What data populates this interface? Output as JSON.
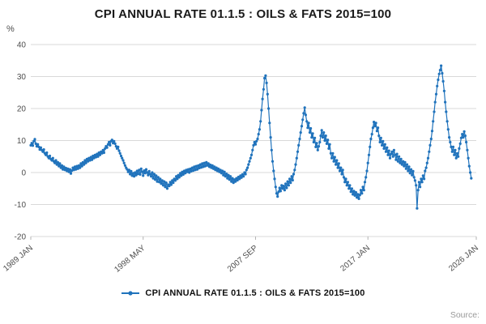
{
  "header": {
    "title": "CPI ANNUAL RATE 01.1.5 : OILS & FATS 2015=100"
  },
  "axes": {
    "unit_label": "%"
  },
  "legend": {
    "label": "CPI ANNUAL RATE 01.1.5 : OILS & FATS 2015=100"
  },
  "footer": {
    "source_label": "Source:"
  },
  "colors": {
    "line": "#2073bc",
    "grid": "#d9d9d9",
    "tick_text": "#4d4d4d"
  },
  "chart_data": {
    "type": "line",
    "title": "CPI ANNUAL RATE 01.1.5 : OILS & FATS 2015=100",
    "xlabel": "",
    "ylabel": "%",
    "ylim": [
      -20,
      40
    ],
    "yticks": [
      40,
      30,
      20,
      10,
      0,
      -10,
      -20
    ],
    "xticks": [
      "1989 JAN",
      "1998 MAY",
      "2007 SEP",
      "2017 JAN",
      "2026 JAN"
    ],
    "xtick_month_offsets": [
      0,
      112,
      224,
      336,
      444
    ],
    "x_start": "1989-01",
    "x_axis_end": "2026-01",
    "x_total_months": 444,
    "frequency": "monthly",
    "grid": "horizontal",
    "marker": "circle",
    "legend_position": "bottom",
    "series": [
      {
        "name": "CPI ANNUAL RATE 01.1.5 : OILS & FATS 2015=100",
        "values": [
          8.5,
          9.2,
          8.4,
          9.8,
          10.4,
          9.0,
          8.2,
          8.8,
          8.0,
          7.2,
          7.8,
          7.0,
          6.5,
          7.2,
          6.0,
          5.5,
          6.2,
          5.0,
          4.5,
          5.2,
          4.2,
          3.8,
          4.5,
          3.5,
          3.0,
          3.8,
          2.5,
          3.2,
          2.0,
          2.8,
          1.5,
          2.2,
          1.0,
          1.8,
          0.8,
          1.4,
          0.5,
          1.2,
          0.2,
          1.0,
          -0.3,
          0.6,
          1.5,
          0.8,
          1.8,
          1.0,
          2.0,
          1.2,
          2.2,
          1.5,
          2.8,
          2.0,
          3.2,
          2.5,
          3.8,
          3.0,
          4.2,
          3.5,
          4.5,
          3.8,
          4.8,
          4.0,
          5.2,
          4.5,
          5.5,
          4.8,
          5.8,
          5.0,
          6.2,
          5.5,
          6.5,
          6.0,
          7.0,
          6.2,
          7.5,
          8.2,
          7.8,
          8.8,
          9.5,
          8.5,
          9.8,
          10.2,
          9.2,
          9.8,
          9.0,
          8.2,
          7.5,
          8.0,
          6.8,
          6.0,
          5.2,
          4.5,
          3.8,
          3.0,
          2.2,
          1.5,
          1.0,
          0.2,
          0.8,
          -0.5,
          0.4,
          -1.0,
          -0.2,
          -1.2,
          0.0,
          -0.8,
          0.5,
          -0.4,
          0.8,
          -0.6,
          1.2,
          0.2,
          -1.0,
          0.6,
          -0.2,
          1.0,
          0.0,
          -0.8,
          0.4,
          -0.5,
          -1.2,
          0.0,
          -1.8,
          -0.5,
          -2.2,
          -1.0,
          -2.8,
          -1.5,
          -3.0,
          -2.0,
          -3.5,
          -2.5,
          -4.0,
          -2.8,
          -4.5,
          -3.2,
          -5.0,
          -3.8,
          -4.2,
          -3.0,
          -3.8,
          -2.5,
          -3.2,
          -2.0,
          -2.5,
          -1.2,
          -2.0,
          -0.8,
          -1.5,
          -0.2,
          -1.0,
          0.2,
          -0.6,
          0.5,
          -0.2,
          0.8,
          0.2,
          1.0,
          0.0,
          1.2,
          0.4,
          1.5,
          0.6,
          1.8,
          0.8,
          2.0,
          1.0,
          2.2,
          1.4,
          2.5,
          1.6,
          2.8,
          1.8,
          3.0,
          2.0,
          3.2,
          2.2,
          2.8,
          1.8,
          2.4,
          1.5,
          2.2,
          1.2,
          1.8,
          0.8,
          1.5,
          0.5,
          1.2,
          0.2,
          0.8,
          -0.2,
          0.5,
          -0.8,
          0.2,
          -1.2,
          -0.4,
          -1.8,
          -0.8,
          -2.2,
          -1.2,
          -2.8,
          -1.8,
          -3.2,
          -2.2,
          -2.8,
          -1.8,
          -2.4,
          -1.4,
          -2.0,
          -1.0,
          -1.6,
          -0.6,
          -1.2,
          0.0,
          -0.5,
          0.8,
          1.5,
          2.5,
          3.5,
          4.5,
          5.5,
          7.0,
          8.5,
          9.5,
          8.8,
          9.8,
          10.5,
          12.0,
          13.5,
          16.0,
          19.5,
          23.0,
          26.0,
          29.5,
          30.3,
          28.0,
          24.5,
          20.0,
          15.5,
          11.0,
          7.0,
          3.5,
          0.5,
          -2.0,
          -4.5,
          -6.5,
          -7.5,
          -6.0,
          -4.8,
          -5.8,
          -4.0,
          -5.0,
          -4.2,
          -5.5,
          -3.5,
          -4.8,
          -2.8,
          -4.0,
          -2.0,
          -3.2,
          -1.2,
          -2.4,
          -0.5,
          0.8,
          2.5,
          4.5,
          6.5,
          8.5,
          10.5,
          12.5,
          14.5,
          16.5,
          18.5,
          20.3,
          18.0,
          16.0,
          14.0,
          15.5,
          12.5,
          13.8,
          11.0,
          12.2,
          9.5,
          10.8,
          8.0,
          9.2,
          7.0,
          8.2,
          9.5,
          11.5,
          13.2,
          11.0,
          12.5,
          10.0,
          11.5,
          9.0,
          10.2,
          7.5,
          8.8,
          6.0,
          4.5,
          6.0,
          3.5,
          4.8,
          2.5,
          3.8,
          1.5,
          2.8,
          0.5,
          1.5,
          -0.5,
          0.8,
          -1.5,
          -3.0,
          -2.0,
          -4.0,
          -3.0,
          -5.0,
          -4.0,
          -6.0,
          -5.0,
          -6.8,
          -5.8,
          -7.2,
          -6.2,
          -7.8,
          -6.8,
          -8.2,
          -7.0,
          -5.5,
          -6.5,
          -4.5,
          -5.5,
          -3.0,
          -1.5,
          0.5,
          3.0,
          5.5,
          8.0,
          10.5,
          12.0,
          14.0,
          15.8,
          14.5,
          15.5,
          13.0,
          14.0,
          11.5,
          9.5,
          10.8,
          8.5,
          9.8,
          7.5,
          8.8,
          6.5,
          7.8,
          5.5,
          6.8,
          4.5,
          5.8,
          6.5,
          5.0,
          7.0,
          5.5,
          4.0,
          5.8,
          3.5,
          5.0,
          3.0,
          4.2,
          2.5,
          3.5,
          2.0,
          3.2,
          1.2,
          2.5,
          0.5,
          1.8,
          -0.2,
          1.0,
          -0.8,
          0.4,
          -1.5,
          -2.5,
          -4.0,
          -11.2,
          -5.5,
          -3.0,
          -4.5,
          -2.0,
          -3.0,
          -1.0,
          -2.0,
          0.5,
          1.5,
          3.0,
          4.5,
          6.5,
          8.5,
          10.5,
          13.0,
          16.0,
          19.0,
          22.0,
          24.5,
          27.0,
          29.0,
          30.8,
          32.0,
          33.4,
          31.0,
          28.5,
          25.5,
          22.0,
          19.0,
          16.0,
          13.5,
          11.0,
          9.5,
          8.0,
          6.5,
          8.0,
          5.5,
          7.0,
          4.5,
          6.0,
          5.0,
          7.5,
          9.0,
          10.8,
          12.0,
          11.0,
          12.8,
          11.5,
          9.5,
          7.0,
          4.5,
          2.0,
          0.0,
          -1.8
        ]
      }
    ]
  }
}
